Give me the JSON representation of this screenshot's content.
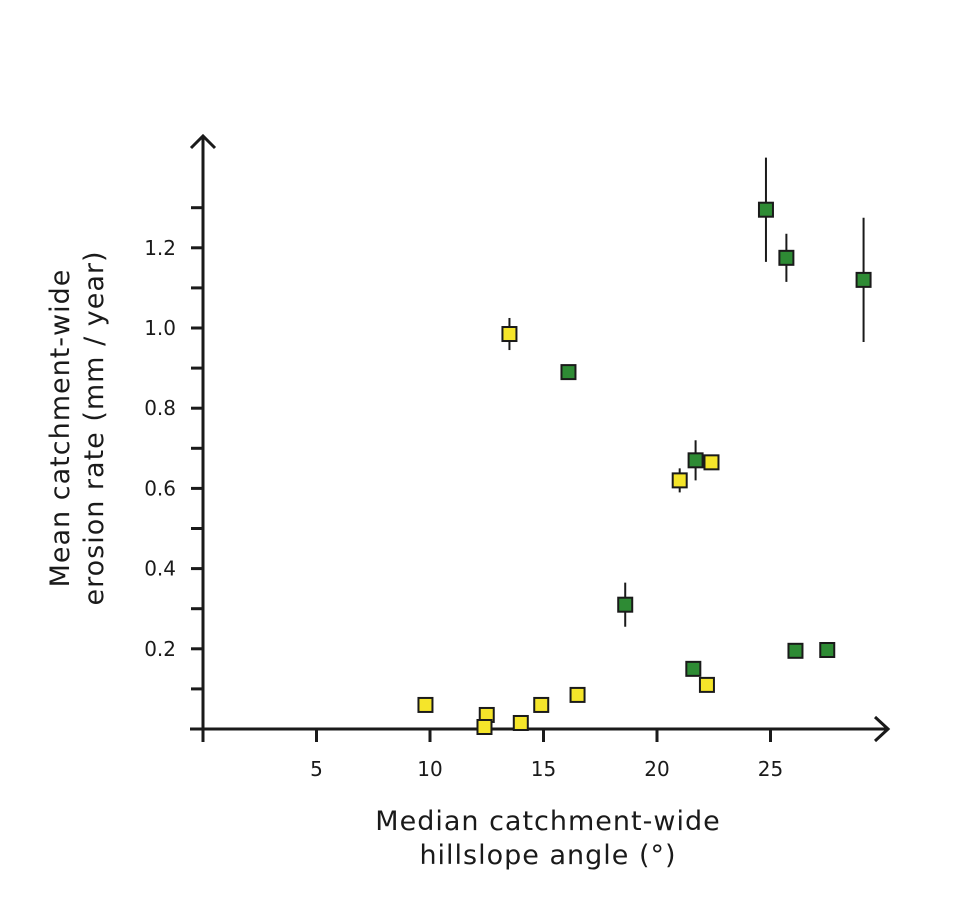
{
  "chart_data": {
    "type": "scatter",
    "xlabel": [
      "Median catchment-wide",
      "hillslope angle (°)"
    ],
    "ylabel": [
      "Mean catchment-wide",
      "erosion rate (mm / year)"
    ],
    "xlim": [
      0,
      30
    ],
    "ylim": [
      0,
      1.45
    ],
    "x_ticks": [
      5,
      10,
      15,
      20,
      25
    ],
    "x_tick_labels": [
      "5",
      "10",
      "15",
      "20",
      "25"
    ],
    "y_ticks": [
      0.2,
      0.4,
      0.6,
      0.8,
      1.0,
      1.2
    ],
    "y_tick_labels": [
      "0.2",
      "0.4",
      "0.6",
      "0.8",
      "1.0",
      "1.2"
    ],
    "y_minor_ticks": [
      0.1,
      0.3,
      0.5,
      0.7,
      0.9,
      1.1,
      1.3
    ],
    "grid": false,
    "marker": "square",
    "series": [
      {
        "color": "#f5e52a",
        "points": [
          {
            "x": 9.8,
            "y": 0.06
          },
          {
            "x": 12.5,
            "y": 0.035
          },
          {
            "x": 12.4,
            "y": 0.005
          },
          {
            "x": 13.5,
            "y": 0.985,
            "err": 0.04
          },
          {
            "x": 14.0,
            "y": 0.015
          },
          {
            "x": 14.9,
            "y": 0.06
          },
          {
            "x": 16.5,
            "y": 0.085
          },
          {
            "x": 21.0,
            "y": 0.62,
            "err": 0.03
          },
          {
            "x": 22.2,
            "y": 0.11
          },
          {
            "x": 22.4,
            "y": 0.665
          }
        ]
      },
      {
        "color": "#2e8b34",
        "points": [
          {
            "x": 16.1,
            "y": 0.89
          },
          {
            "x": 18.6,
            "y": 0.31,
            "err": 0.055
          },
          {
            "x": 21.6,
            "y": 0.15
          },
          {
            "x": 21.7,
            "y": 0.67,
            "err": 0.05
          },
          {
            "x": 24.8,
            "y": 1.295,
            "err": 0.13
          },
          {
            "x": 25.7,
            "y": 1.175,
            "err": 0.06
          },
          {
            "x": 26.1,
            "y": 0.195
          },
          {
            "x": 27.5,
            "y": 0.197
          },
          {
            "x": 29.1,
            "y": 1.12,
            "err": 0.155
          }
        ]
      }
    ]
  }
}
